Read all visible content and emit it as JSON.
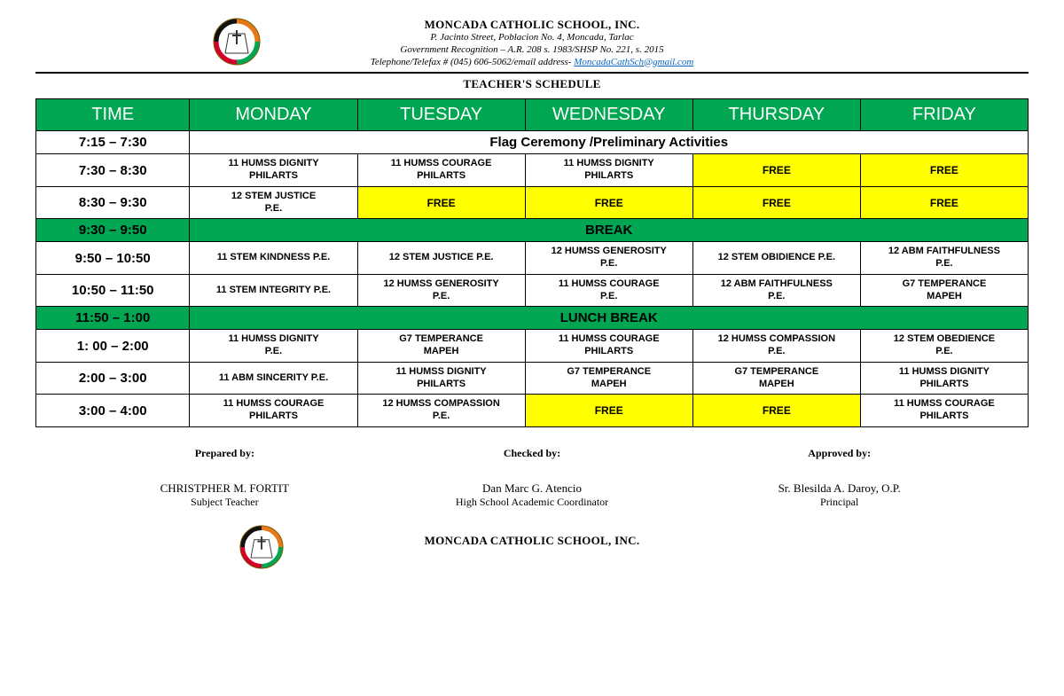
{
  "colors": {
    "header_green": "#00a651",
    "free_yellow": "#ffff00",
    "link_blue": "#0563c1",
    "border": "#000000",
    "bg": "#ffffff"
  },
  "header": {
    "school_name": "MONCADA CATHOLIC SCHOOL, INC.",
    "address": "P. Jacinto Street, Poblacion No. 4, Moncada, Tarlac",
    "recognition": "Government Recognition – A.R. 208 s. 1983/SHSP No. 221, s. 2015",
    "tel_prefix": "Telephone/Telefax # (045) 606-5062/email address- ",
    "email": "MoncadaCathSch@gmail.com",
    "title": "TEACHER'S SCHEDULE"
  },
  "table": {
    "headers": [
      "TIME",
      "MONDAY",
      "TUESDAY",
      "WEDNESDAY",
      "THURSDAY",
      "FRIDAY"
    ],
    "rows": [
      {
        "time": "7:15 – 7:30",
        "type": "span",
        "text": "Flag Ceremony /Preliminary Activities",
        "style": "white"
      },
      {
        "time": "7:30 – 8:30",
        "cells": [
          {
            "t": "11 HUMSS DIGNITY\nPHILARTS"
          },
          {
            "t": "11 HUMSS COURAGE\nPHILARTS"
          },
          {
            "t": "11 HUMSS DIGNITY\nPHILARTS"
          },
          {
            "t": "FREE",
            "free": true
          },
          {
            "t": "FREE",
            "free": true
          }
        ]
      },
      {
        "time": "8:30 – 9:30",
        "cells": [
          {
            "t": "12 STEM JUSTICE\nP.E."
          },
          {
            "t": "FREE",
            "free": true
          },
          {
            "t": "FREE",
            "free": true
          },
          {
            "t": "FREE",
            "free": true
          },
          {
            "t": "FREE",
            "free": true
          }
        ]
      },
      {
        "time": "9:30 – 9:50",
        "type": "span",
        "text": "BREAK",
        "style": "green"
      },
      {
        "time": "9:50 – 10:50",
        "cells": [
          {
            "t": "11 STEM KINDNESS P.E."
          },
          {
            "t": "12 STEM JUSTICE P.E."
          },
          {
            "t": "12 HUMSS GENEROSITY\nP.E."
          },
          {
            "t": "12 STEM OBIDIENCE P.E."
          },
          {
            "t": "12 ABM FAITHFULNESS\nP.E."
          }
        ]
      },
      {
        "time": "10:50 – 11:50",
        "cells": [
          {
            "t": "11 STEM INTEGRITY P.E."
          },
          {
            "t": "12 HUMSS GENEROSITY\nP.E."
          },
          {
            "t": "11 HUMSS COURAGE\nP.E."
          },
          {
            "t": "12 ABM FAITHFULNESS\nP.E."
          },
          {
            "t": "G7 TEMPERANCE\nMAPEH"
          }
        ]
      },
      {
        "time": "11:50 – 1:00",
        "type": "span",
        "text": "LUNCH BREAK",
        "style": "green"
      },
      {
        "time": "1: 00 – 2:00",
        "cells": [
          {
            "t": "11 HUMSS DIGNITY\nP.E."
          },
          {
            "t": "G7 TEMPERANCE\nMAPEH"
          },
          {
            "t": "11 HUMSS COURAGE\nPHILARTS"
          },
          {
            "t": "12 HUMSS COMPASSION\nP.E."
          },
          {
            "t": "12 STEM OBEDIENCE\nP.E."
          }
        ]
      },
      {
        "time": "2:00 – 3:00",
        "cells": [
          {
            "t": "11 ABM SINCERITY P.E."
          },
          {
            "t": "11 HUMSS DIGNITY\nPHILARTS"
          },
          {
            "t": "G7 TEMPERANCE\nMAPEH"
          },
          {
            "t": "G7 TEMPERANCE\nMAPEH"
          },
          {
            "t": "11 HUMSS DIGNITY\nPHILARTS"
          }
        ]
      },
      {
        "time": "3:00 – 4:00",
        "cells": [
          {
            "t": "11 HUMSS COURAGE\nPHILARTS"
          },
          {
            "t": "12 HUMSS COMPASSION\nP.E."
          },
          {
            "t": "FREE",
            "free": true
          },
          {
            "t": "FREE",
            "free": true
          },
          {
            "t": "11 HUMSS COURAGE\nPHILARTS"
          }
        ]
      }
    ]
  },
  "signatures": {
    "prepared": {
      "label": "Prepared by:",
      "name": "CHRISTPHER M. FORTIT",
      "role": "Subject Teacher"
    },
    "checked": {
      "label": "Checked by:",
      "name": "Dan Marc G. Atencio",
      "role": "High School Academic Coordinator"
    },
    "approved": {
      "label": "Approved by:",
      "name": "Sr. Blesilda A. Daroy, O.P.",
      "role": "Principal"
    }
  },
  "footer": {
    "school_name": "MONCADA CATHOLIC SCHOOL, INC."
  }
}
